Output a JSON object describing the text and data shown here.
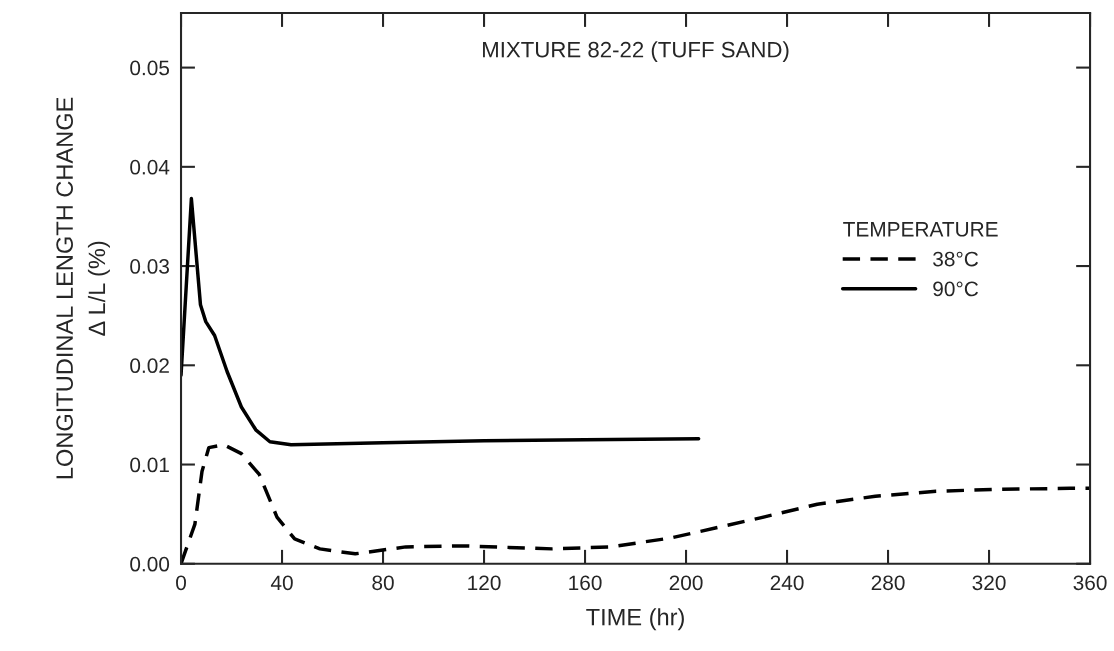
{
  "chart_data": {
    "type": "line",
    "title": "MIXTURE 82-22 (TUFF SAND)",
    "xlabel": "TIME (hr)",
    "ylabel": "LONGITUDINAL LENGTH CHANGE\nΔ L/L (%)",
    "legend_title": "TEMPERATURE",
    "legend": "right",
    "xlim": [
      0,
      360
    ],
    "xticks": [
      0,
      40,
      80,
      120,
      160,
      200,
      240,
      280,
      320,
      360
    ],
    "ylim": [
      0,
      0.0555
    ],
    "yticks": [
      {
        "value": 0,
        "label": "0.00"
      },
      {
        "value": 0.01,
        "label": "0.01"
      },
      {
        "value": 0.02,
        "label": "0.02"
      },
      {
        "value": 0.03,
        "label": "0.03"
      },
      {
        "value": 0.04,
        "label": "0.04"
      },
      {
        "value": 0.05,
        "label": "0.05"
      }
    ],
    "grid": false,
    "series": [
      {
        "name": "38°C",
        "color": "#000000",
        "line_style": "dashed",
        "x": [
          0,
          5.5,
          8.3,
          11,
          16.9,
          23.9,
          31,
          38,
          45,
          55,
          69,
          89,
          112,
          147,
          170,
          194,
          229,
          252,
          275,
          299,
          322,
          352,
          360
        ],
        "values": [
          0,
          0.004,
          0.0093,
          0.0117,
          0.012,
          0.0111,
          0.009,
          0.0047,
          0.0025,
          0.0015,
          0.001,
          0.0017,
          0.0018,
          0.0015,
          0.0017,
          0.0026,
          0.0046,
          0.006,
          0.0068,
          0.0073,
          0.0075,
          0.0076,
          0.0076
        ]
      },
      {
        "name": "90°C",
        "color": "#000000",
        "line_style": "solid",
        "x": [
          0,
          4.1,
          7.7,
          9.8,
          13.3,
          18.2,
          23.9,
          29.6,
          35.2,
          43.6,
          80,
          120,
          160,
          205
        ],
        "values": [
          0.019,
          0.0368,
          0.0261,
          0.0244,
          0.023,
          0.0194,
          0.0158,
          0.0135,
          0.0123,
          0.012,
          0.0122,
          0.0124,
          0.0125,
          0.0126
        ]
      }
    ]
  }
}
